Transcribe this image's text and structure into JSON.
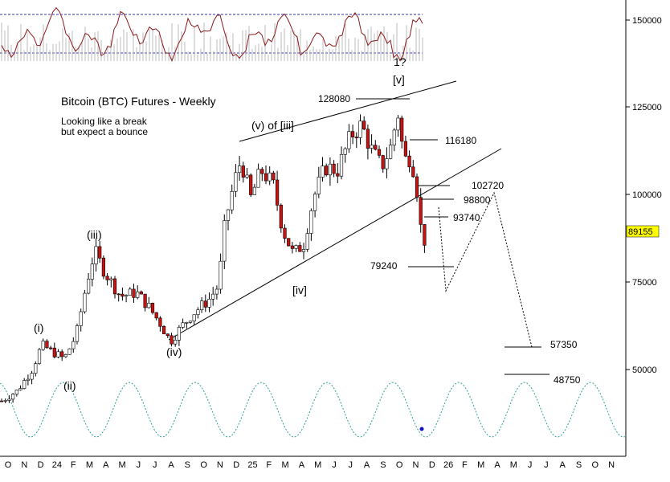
{
  "chart_data": {
    "type": "candlestick",
    "title": "Bitcoin (BTC) Futures - Weekly",
    "subtitle_lines": [
      "Looking like a break",
      "but expect a bounce"
    ],
    "y_axis": {
      "side": "right",
      "ticks": [
        "150000",
        "125000",
        "100000",
        "75000",
        "50000"
      ],
      "current_price": "89155",
      "current_price_color": "#ffff00"
    },
    "x_axis": {
      "tick_labels": [
        "O",
        "N",
        "D",
        "24",
        "F",
        "M",
        "A",
        "M",
        "J",
        "J",
        "A",
        "S",
        "O",
        "N",
        "D",
        "25",
        "F",
        "M",
        "A",
        "M",
        "J",
        "J",
        "A",
        "S",
        "O",
        "N",
        "D",
        "26",
        "F",
        "M",
        "A",
        "M",
        "J",
        "J",
        "A",
        "S",
        "O",
        "N"
      ]
    },
    "wave_labels": [
      "(i)",
      "(ii)",
      "(iii)",
      "(iv)",
      "(v) of [iii]",
      "[iv]",
      "[v]",
      "1?"
    ],
    "price_levels": [
      "128080",
      "116180",
      "102720",
      "98800",
      "93740",
      "79240",
      "57350",
      "48750"
    ],
    "projection": [
      "89155",
      "98800",
      "75000",
      "102720",
      "57350"
    ],
    "colors": {
      "up_candle": "#ffffff",
      "down_candle": "#cc1111",
      "candle_outline": "#000000",
      "oscillator": "#8b1a1a",
      "oscillator_band": "#3333aa",
      "cycle_line": "#2aa198",
      "cycle_marker": "#1010cc",
      "price_box": "#ffff00"
    },
    "legend": "none",
    "grid": false
  }
}
